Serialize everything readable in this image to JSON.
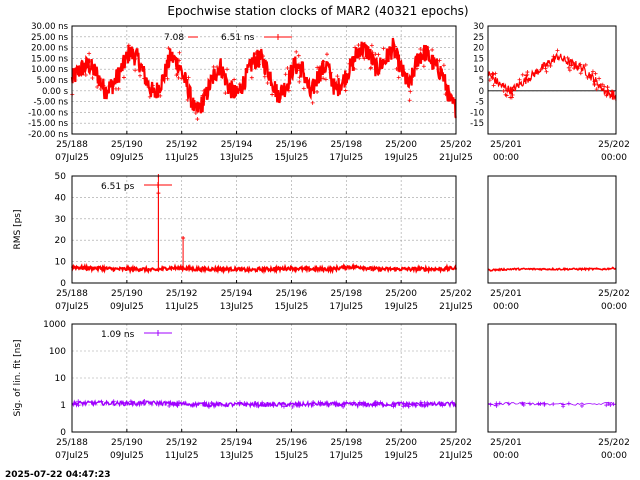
{
  "title": "Epochwise station clocks of MAR2 (40321 epochs)",
  "timestamp": "2025-07-22 04:47:23",
  "colors": {
    "clock": "#ff0000",
    "rms": "#ff0000",
    "sig": "#a000ff",
    "grid": "#a0a0a0"
  },
  "x_ticks_main": [
    {
      "top": "25/188",
      "bottom": "07Jul25"
    },
    {
      "top": "25/190",
      "bottom": "09Jul25"
    },
    {
      "top": "25/192",
      "bottom": "11Jul25"
    },
    {
      "top": "25/194",
      "bottom": "13Jul25"
    },
    {
      "top": "25/196",
      "bottom": "15Jul25"
    },
    {
      "top": "25/198",
      "bottom": "17Jul25"
    },
    {
      "top": "25/200",
      "bottom": "19Jul25"
    },
    {
      "top": "25/202",
      "bottom": "21Jul25"
    }
  ],
  "x_ticks_zoom": [
    {
      "top": "25/201",
      "bottom": "00:00"
    },
    {
      "top": "25/202",
      "bottom": "00:00"
    }
  ],
  "chart_data": [
    {
      "type": "line",
      "panel": "station clock",
      "xlim": [
        188,
        202
      ],
      "ylim": [
        -20,
        30
      ],
      "y_ticks": [
        "30.00 ns",
        "25.00 ns",
        "20.00 ns",
        "15.00 ns",
        "10.00 ns",
        "5.00 ns",
        "0.00 s",
        "-5.00 ns",
        "-10.00 ns",
        "-15.00 ns",
        "-20.00 ns"
      ],
      "y_ticks_zoom": [
        "30",
        "25",
        "20",
        "15",
        "10",
        "5",
        "0",
        "-5",
        "-10",
        "-15"
      ],
      "legend_left": "7.08",
      "legend_right": "6.51 ns",
      "x": [
        188.0,
        188.3,
        188.6,
        188.9,
        189.2,
        189.5,
        189.8,
        190.1,
        190.4,
        190.7,
        191.0,
        191.3,
        191.6,
        191.9,
        192.2,
        192.5,
        192.8,
        193.1,
        193.4,
        193.7,
        194.0,
        194.3,
        194.6,
        194.9,
        195.2,
        195.5,
        195.8,
        196.1,
        196.4,
        196.7,
        197.0,
        197.3,
        197.6,
        197.9,
        198.2,
        198.5,
        198.8,
        199.1,
        199.4,
        199.7,
        200.0,
        200.3,
        200.6,
        200.9,
        201.2,
        201.5,
        201.8,
        202.0
      ],
      "y": [
        5,
        10,
        12,
        8,
        0,
        3,
        10,
        18,
        15,
        5,
        -2,
        5,
        16,
        12,
        2,
        -10,
        -5,
        5,
        12,
        2,
        -2,
        5,
        14,
        15,
        8,
        -2,
        2,
        12,
        10,
        -2,
        8,
        12,
        0,
        5,
        12,
        20,
        18,
        10,
        14,
        20,
        10,
        2,
        15,
        18,
        12,
        8,
        -5,
        -8
      ],
      "zoom_xlim": [
        200.9,
        202.0
      ],
      "zoom_x": [
        200.9,
        201.0,
        201.1,
        201.2,
        201.3,
        201.4,
        201.5,
        201.6,
        201.7,
        201.8,
        201.9,
        202.0
      ],
      "zoom_y": [
        8,
        3,
        0,
        4,
        8,
        12,
        16,
        13,
        11,
        6,
        0,
        -3
      ]
    },
    {
      "type": "line",
      "panel": "RMS",
      "ylabel": "RMS [ps]",
      "xlim": [
        188,
        202
      ],
      "ylim": [
        0,
        50
      ],
      "y_ticks": [
        "50",
        "40",
        "30",
        "20",
        "10",
        "0"
      ],
      "legend": "6.51 ps",
      "x": [
        188.0,
        188.5,
        189.0,
        189.5,
        190.0,
        190.5,
        191.0,
        191.5,
        192.0,
        192.5,
        193.0,
        193.5,
        194.0,
        194.5,
        195.0,
        195.5,
        196.0,
        196.5,
        197.0,
        197.5,
        198.0,
        198.5,
        199.0,
        199.5,
        200.0,
        200.5,
        201.0,
        201.5,
        202.0
      ],
      "y": [
        7.5,
        7,
        7,
        6.5,
        6.5,
        6.5,
        6,
        7,
        7,
        6.5,
        6.5,
        6.5,
        6.5,
        6,
        6.5,
        6.5,
        7,
        6.5,
        6.5,
        6.5,
        7.5,
        7.5,
        6.5,
        6.5,
        6.5,
        6.5,
        6.5,
        6.5,
        7
      ],
      "spikes": [
        {
          "x": 191.15,
          "y": 42
        },
        {
          "x": 191.15,
          "y": 50
        },
        {
          "x": 192.05,
          "y": 21
        }
      ],
      "zoom_xlim": [
        200.9,
        202.0
      ],
      "zoom_x": [
        200.9,
        201.1,
        201.3,
        201.5,
        201.7,
        201.9,
        202.0
      ],
      "zoom_y": [
        6,
        6.5,
        6.5,
        6.5,
        6.5,
        6.5,
        7
      ]
    },
    {
      "type": "line",
      "panel": "lin. fit sigma",
      "ylabel": "Sig. of lin. fit [ns]",
      "xlim": [
        188,
        202
      ],
      "ylim_log": [
        0.1,
        1000
      ],
      "y_ticks": [
        "1000",
        "100",
        "10",
        "1",
        "0"
      ],
      "legend": "1.09 ns",
      "x": [
        188.0,
        189.0,
        190.0,
        191.0,
        192.0,
        193.0,
        194.0,
        195.0,
        196.0,
        197.0,
        198.0,
        199.0,
        200.0,
        201.0,
        202.0
      ],
      "y": [
        1.15,
        1.2,
        1.15,
        1.2,
        1.1,
        1.05,
        1.05,
        1.05,
        1.05,
        1.1,
        1.05,
        1.05,
        1.1,
        1.05,
        1.1
      ],
      "zoom_xlim": [
        200.9,
        202.0
      ],
      "zoom_x": [
        200.9,
        201.2,
        201.5,
        201.8,
        202.0
      ],
      "zoom_y": [
        1.05,
        1.15,
        1.05,
        1.1,
        1.2
      ]
    }
  ]
}
